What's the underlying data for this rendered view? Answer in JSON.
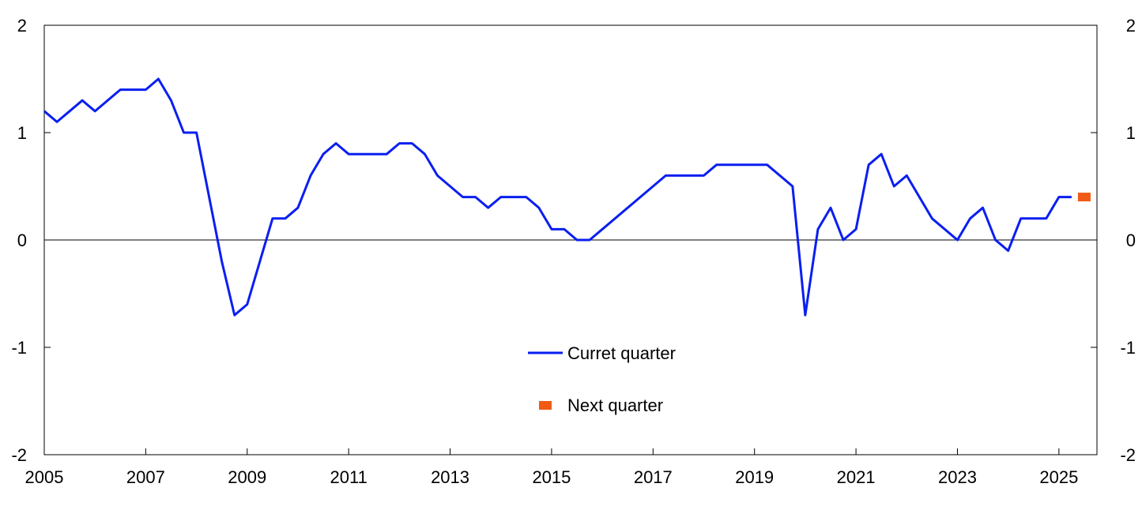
{
  "chart_data": {
    "type": "line",
    "title": "",
    "xlabel": "",
    "ylabel": "",
    "xlim": [
      2005.0,
      2025.75
    ],
    "ylim": [
      -2,
      2
    ],
    "y_ticks": [
      "2",
      "1",
      "0",
      "-1",
      "-2"
    ],
    "y_tick_values": [
      2,
      1,
      0,
      -1,
      -2
    ],
    "x_ticks": [
      "2005",
      "2007",
      "2009",
      "2011",
      "2013",
      "2015",
      "2017",
      "2019",
      "2021",
      "2023",
      "2025"
    ],
    "x_tick_values": [
      2005,
      2007,
      2009,
      2011,
      2013,
      2015,
      2017,
      2019,
      2021,
      2023,
      2025
    ],
    "grid": false,
    "zero_line": true,
    "legend_position": "center",
    "series": [
      {
        "name": "Curret quarter",
        "color": "#0a1ff0",
        "style": "line",
        "x": [
          2005.0,
          2005.25,
          2005.5,
          2005.75,
          2006.0,
          2006.25,
          2006.5,
          2006.75,
          2007.0,
          2007.25,
          2007.5,
          2007.75,
          2008.0,
          2008.25,
          2008.5,
          2008.75,
          2009.0,
          2009.25,
          2009.5,
          2009.75,
          2010.0,
          2010.25,
          2010.5,
          2010.75,
          2011.0,
          2011.25,
          2011.5,
          2011.75,
          2012.0,
          2012.25,
          2012.5,
          2012.75,
          2013.0,
          2013.25,
          2013.5,
          2013.75,
          2014.0,
          2014.25,
          2014.5,
          2014.75,
          2015.0,
          2015.25,
          2015.5,
          2015.75,
          2017.25,
          2017.5,
          2017.75,
          2018.0,
          2018.25,
          2018.5,
          2018.75,
          2019.0,
          2019.25,
          2019.75,
          2020.0,
          2020.25,
          2020.5,
          2020.75,
          2021.0,
          2021.25,
          2021.5,
          2021.75,
          2022.0,
          2022.5,
          2023.0,
          2023.25,
          2023.5,
          2023.75,
          2024.0,
          2024.25,
          2024.5,
          2024.75,
          2025.0,
          2025.25
        ],
        "values": [
          1.2,
          1.1,
          1.2,
          1.3,
          1.2,
          1.3,
          1.4,
          1.4,
          1.4,
          1.5,
          1.3,
          1.0,
          1.0,
          0.4,
          -0.2,
          -0.7,
          -0.6,
          -0.2,
          0.2,
          0.2,
          0.3,
          0.6,
          0.8,
          0.9,
          0.8,
          0.8,
          0.8,
          0.8,
          0.9,
          0.9,
          0.8,
          0.6,
          0.5,
          0.4,
          0.4,
          0.3,
          0.4,
          0.4,
          0.4,
          0.3,
          0.1,
          0.1,
          0.0,
          0.0,
          0.6,
          0.6,
          0.6,
          0.6,
          0.7,
          0.7,
          0.7,
          0.7,
          0.7,
          0.5,
          -0.7,
          0.1,
          0.3,
          0.0,
          0.1,
          0.7,
          0.8,
          0.5,
          0.6,
          0.2,
          0.0,
          0.2,
          0.3,
          0.0,
          -0.1,
          0.2,
          0.2,
          0.2,
          0.4,
          0.4
        ]
      },
      {
        "name": "Next quarter",
        "color": "#f05a14",
        "style": "marker",
        "x": [
          2025.5
        ],
        "values": [
          0.4
        ]
      }
    ]
  }
}
